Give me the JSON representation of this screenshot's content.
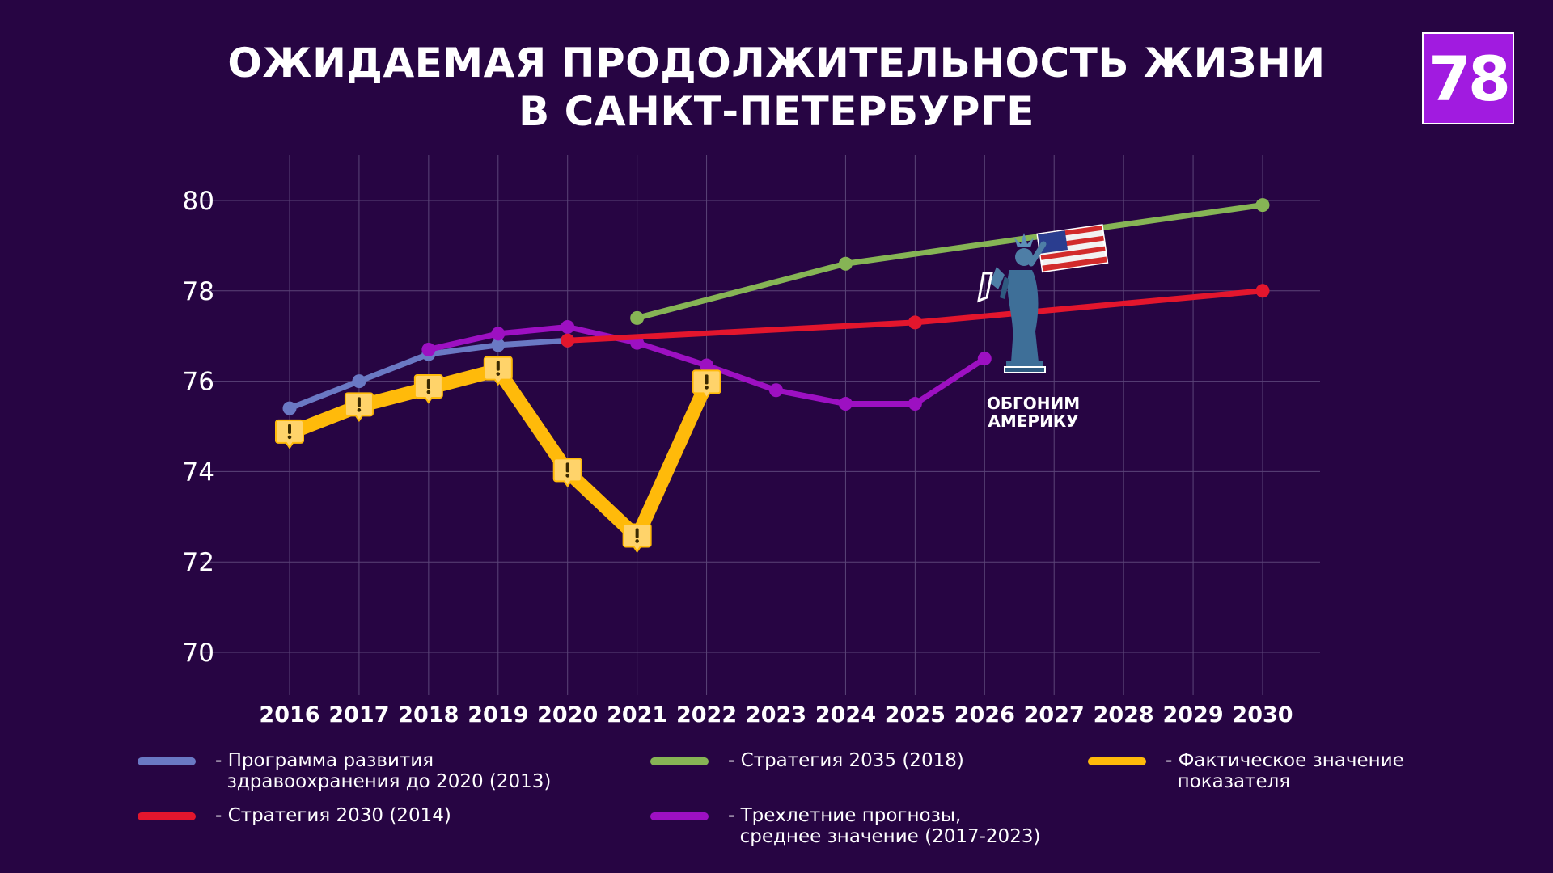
{
  "title_line1": "ОЖИДАЕМАЯ ПРОДОЛЖИТЕЛЬНОСТЬ ЖИЗНИ",
  "title_line2": "В САНКТ-ПЕТЕРБУРГЕ",
  "logo_text": "78",
  "annotation": "ОБГОНИМ АМЕРИКУ",
  "colors": {
    "background": "#270543",
    "grid": "#5b4578",
    "blue": "#6a79c4",
    "green": "#86b455",
    "red": "#e3162d",
    "purple": "#9d10c2",
    "yellow": "#ffba0a",
    "marker_fill": "#ffd36a",
    "logo": "#a11be0"
  },
  "chart_data": {
    "type": "line",
    "title": "ОЖИДАЕМАЯ ПРОДОЛЖИТЕЛЬНОСТЬ ЖИЗНИ В САНКТ-ПЕТЕРБУРГЕ",
    "categories": [
      "2016",
      "2017",
      "2018",
      "2019",
      "2020",
      "2021",
      "2022",
      "2023",
      "2024",
      "2025",
      "2026",
      "2027",
      "2028",
      "2029",
      "2030"
    ],
    "y_ticks": [
      70,
      72,
      74,
      76,
      78,
      80
    ],
    "ylim": [
      69,
      81
    ],
    "grid": true,
    "legend_position": "bottom",
    "series": [
      {
        "key": "blue",
        "name": "- Программа развития\n  здравоохранения до 2020 (2013)",
        "color_key": "blue",
        "points": [
          [
            "2016",
            75.4
          ],
          [
            "2017",
            76.0
          ],
          [
            "2018",
            76.6
          ],
          [
            "2019",
            76.8
          ],
          [
            "2020",
            76.9
          ]
        ]
      },
      {
        "key": "purple",
        "name": "- Трехлетние прогнозы,\n  среднее значение (2017-2023)",
        "color_key": "purple",
        "points": [
          [
            "2018",
            76.7
          ],
          [
            "2019",
            77.05
          ],
          [
            "2020",
            77.2
          ],
          [
            "2021",
            76.85
          ],
          [
            "2022",
            76.35
          ],
          [
            "2023",
            75.8
          ],
          [
            "2024",
            75.5
          ],
          [
            "2025",
            75.5
          ],
          [
            "2026",
            76.5
          ]
        ]
      },
      {
        "key": "red",
        "name": "- Стратегия 2030 (2014)",
        "color_key": "red",
        "points": [
          [
            "2020",
            76.9
          ],
          [
            "2025",
            77.3
          ],
          [
            "2030",
            78.0
          ]
        ]
      },
      {
        "key": "green",
        "name": "- Стратегия 2035 (2018)",
        "color_key": "green",
        "points": [
          [
            "2021",
            77.4
          ],
          [
            "2024",
            78.6
          ],
          [
            "2030",
            79.9
          ]
        ]
      },
      {
        "key": "yellow",
        "name": "- Фактическое значение\n  показателя",
        "color_key": "yellow",
        "points": [
          [
            "2016",
            74.85
          ],
          [
            "2017",
            75.45
          ],
          [
            "2018",
            75.85
          ],
          [
            "2019",
            76.25
          ],
          [
            "2020",
            74.0
          ],
          [
            "2021",
            72.55
          ],
          [
            "2022",
            75.95
          ]
        ]
      }
    ]
  },
  "legend_layout": [
    {
      "series": "blue",
      "left": 170,
      "top": 928
    },
    {
      "series": "green",
      "left": 804,
      "top": 928
    },
    {
      "series": "yellow",
      "left": 1345,
      "top": 928
    },
    {
      "series": "red",
      "left": 170,
      "top": 996
    },
    {
      "series": "purple",
      "left": 804,
      "top": 996
    }
  ]
}
